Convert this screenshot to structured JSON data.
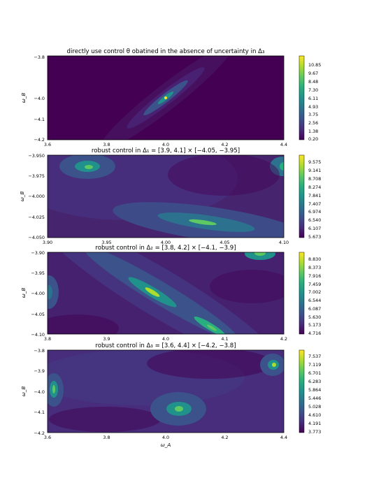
{
  "figure": {
    "xlabel": "ω_A",
    "ylabel": "ω_B"
  },
  "chart_data": [
    {
      "type": "heatmap",
      "title": "directly use control θ obatined in the absence of uncertainty in Δ₃",
      "xlim": [
        3.6,
        4.4
      ],
      "ylim": [
        -4.2,
        -3.8
      ],
      "xticks": [
        "3.6",
        "3.8",
        "4.0",
        "4.2",
        "4.4"
      ],
      "yticks": [
        "−3.8",
        "−4.0",
        "−4.1",
        "−4.2"
      ],
      "colorbar_ticks": [
        "10.85",
        "9.67",
        "8.48",
        "7.30",
        "6.11",
        "4.93",
        "3.75",
        "2.56",
        "1.38",
        "0.20"
      ],
      "value_range": [
        0.2,
        10.85
      ],
      "peaks": [
        {
          "x": 4.0,
          "y": -4.0,
          "level": 10.85
        }
      ]
    },
    {
      "type": "heatmap",
      "title": "robust control in Δ₁ = [3.9, 4.1] × [−4.05, −3.95]",
      "xlim": [
        3.9,
        4.1
      ],
      "ylim": [
        -4.05,
        -3.95
      ],
      "xticks": [
        "3.90",
        "3.95",
        "4.00",
        "4.05",
        "4.10"
      ],
      "yticks": [
        "−3.950",
        "−3.975",
        "−4.000",
        "−4.025",
        "−4.050"
      ],
      "colorbar_ticks": [
        "9.575",
        "9.141",
        "8.708",
        "8.274",
        "7.841",
        "7.407",
        "6.974",
        "6.540",
        "6.107",
        "5.673"
      ],
      "value_range": [
        5.673,
        9.575
      ],
      "peaks": [
        {
          "x": 3.935,
          "y": -3.967,
          "level": 9.575
        },
        {
          "x": 4.035,
          "y": -4.035,
          "level": 9.3
        },
        {
          "x": 4.1,
          "y": -3.967,
          "level": 8.6
        }
      ]
    },
    {
      "type": "heatmap",
      "title": "robust control in Δ₂ = [3.8, 4.2] × [−4.1, −3.9]",
      "xlim": [
        3.8,
        4.2
      ],
      "ylim": [
        -4.1,
        -3.9
      ],
      "xticks": [
        "3.8",
        "3.9",
        "4.0",
        "4.1",
        "4.2"
      ],
      "yticks": [
        "−3.90",
        "−3.95",
        "−4.00",
        "−4.05",
        "−4.10"
      ],
      "colorbar_ticks": [
        "8.830",
        "8.373",
        "7.916",
        "7.459",
        "7.002",
        "6.544",
        "6.087",
        "5.630",
        "5.173",
        "4.716"
      ],
      "value_range": [
        4.716,
        8.83
      ],
      "peaks": [
        {
          "x": 3.98,
          "y": -3.995,
          "level": 8.83
        },
        {
          "x": 4.08,
          "y": -4.085,
          "level": 8.3
        },
        {
          "x": 4.16,
          "y": -3.905,
          "level": 8.5
        },
        {
          "x": 3.8,
          "y": -3.99,
          "level": 6.8
        }
      ]
    },
    {
      "type": "heatmap",
      "title": "robust control in Δ₃ = [3.6, 4.4] × [−4.2, −3.8]",
      "xlim": [
        3.6,
        4.4
      ],
      "ylim": [
        -4.2,
        -3.8
      ],
      "xticks": [
        "3.6",
        "3.8",
        "4.0",
        "4.2",
        "4.4"
      ],
      "yticks": [
        "−3.8",
        "−3.9",
        "−4.0",
        "−4.1",
        "−4.2"
      ],
      "colorbar_ticks": [
        "7.537",
        "7.119",
        "6.701",
        "6.283",
        "5.864",
        "5.446",
        "5.028",
        "4.610",
        "4.191",
        "3.773"
      ],
      "value_range": [
        3.773,
        7.537
      ],
      "peaks": [
        {
          "x": 3.62,
          "y": -3.99,
          "level": 7.0
        },
        {
          "x": 4.05,
          "y": -4.09,
          "level": 7.3
        },
        {
          "x": 4.37,
          "y": -3.87,
          "level": 7.537
        }
      ]
    }
  ]
}
